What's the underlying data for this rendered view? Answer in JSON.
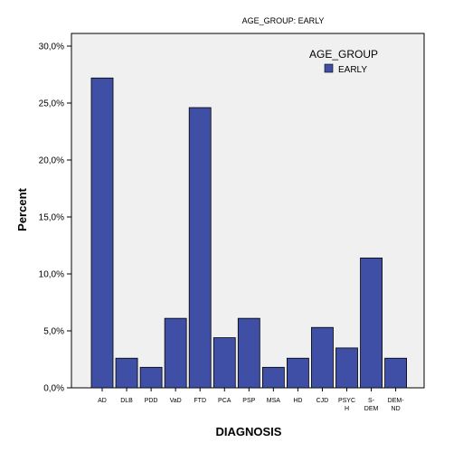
{
  "chart_data": {
    "type": "bar",
    "title": "AGE_GROUP: EARLY",
    "xlabel": "DIAGNOSIS",
    "ylabel": "Percent",
    "categories": [
      [
        "AD"
      ],
      [
        "DLB"
      ],
      [
        "PDD"
      ],
      [
        "VaD"
      ],
      [
        "FTD"
      ],
      [
        "PCA"
      ],
      [
        "PSP"
      ],
      [
        "MSA"
      ],
      [
        "HD"
      ],
      [
        "CJD"
      ],
      [
        "PSYC",
        "H"
      ],
      [
        "S-",
        "DEM"
      ],
      [
        "DEM-",
        "ND"
      ]
    ],
    "series": [
      {
        "name": "EARLY",
        "color": "#3f4fa6",
        "values": [
          27.2,
          2.6,
          1.8,
          6.1,
          24.6,
          4.4,
          6.1,
          1.8,
          2.6,
          5.3,
          3.5,
          11.4,
          2.6
        ]
      }
    ],
    "ylim": [
      0,
      30
    ],
    "yticks": [
      {
        "value": 0,
        "label": "0,0%"
      },
      {
        "value": 5,
        "label": "5,0%"
      },
      {
        "value": 10,
        "label": "10,0%"
      },
      {
        "value": 15,
        "label": "15,0%"
      },
      {
        "value": 20,
        "label": "20,0%"
      },
      {
        "value": 25,
        "label": "25,0%"
      },
      {
        "value": 30,
        "label": "30,0%"
      }
    ],
    "grid": false,
    "legend": {
      "title": "AGE_GROUP",
      "position": "top-right"
    },
    "plot_background": "#f0f0f0"
  }
}
